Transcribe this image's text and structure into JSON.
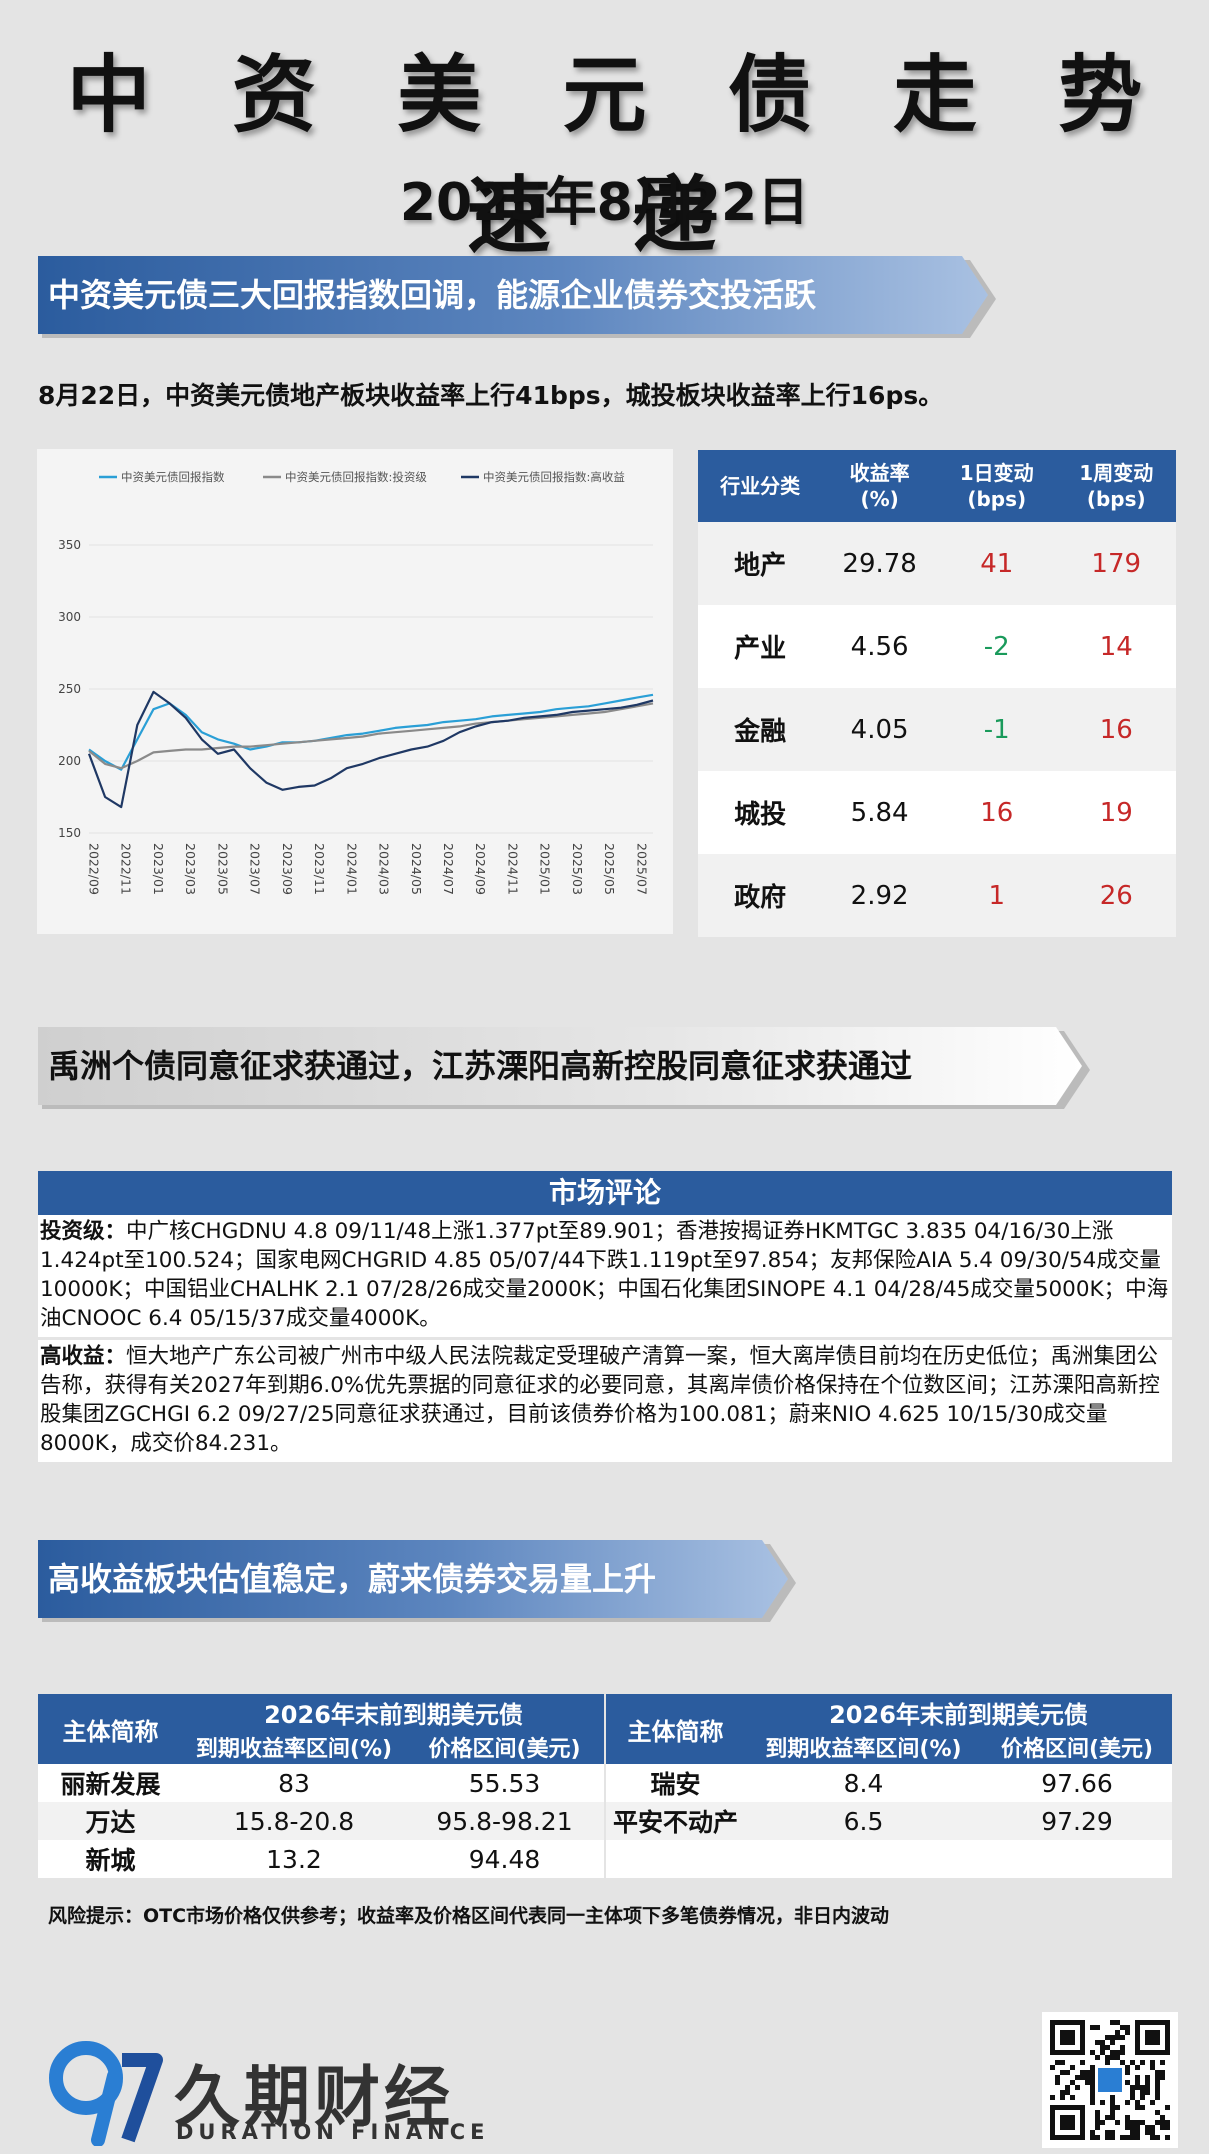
{
  "header": {
    "title": "中 资 美 元 债 走 势 速 递",
    "date": "2025年8月22日"
  },
  "section1": {
    "banner": "中资美元债三大回报指数回调，能源企业债券交投活跃",
    "summary": "8月22日，中资美元债地产板块收益率上行41bps，城投板块收益率上行16ps。"
  },
  "chart_data": {
    "type": "line",
    "title": "",
    "xlabel": "",
    "ylabel": "",
    "ylim": [
      150,
      350
    ],
    "yticks": [
      "150",
      "200",
      "250",
      "300",
      "350"
    ],
    "xticks": [
      "2022/09",
      "2022/11",
      "2023/01",
      "2023/03",
      "2023/05",
      "2023/07",
      "2023/09",
      "2023/11",
      "2024/01",
      "2024/03",
      "2024/05",
      "2024/07",
      "2024/09",
      "2024/11",
      "2025/01",
      "2025/03",
      "2025/05",
      "2025/07"
    ],
    "x": [
      "2022/09",
      "2022/10",
      "2022/11",
      "2022/12",
      "2023/01",
      "2023/02",
      "2023/03",
      "2023/04",
      "2023/05",
      "2023/06",
      "2023/07",
      "2023/08",
      "2023/09",
      "2023/10",
      "2023/11",
      "2023/12",
      "2024/01",
      "2024/02",
      "2024/03",
      "2024/04",
      "2024/05",
      "2024/06",
      "2024/07",
      "2024/08",
      "2024/09",
      "2024/10",
      "2024/11",
      "2024/12",
      "2025/01",
      "2025/02",
      "2025/03",
      "2025/04",
      "2025/05",
      "2025/06",
      "2025/07",
      "2025/08"
    ],
    "series": [
      {
        "name": "中资美元债回报指数",
        "color": "#2a9fd6",
        "values": [
          208,
          200,
          194,
          215,
          236,
          240,
          232,
          220,
          215,
          212,
          208,
          210,
          213,
          213,
          214,
          216,
          218,
          219,
          221,
          223,
          224,
          225,
          227,
          228,
          229,
          231,
          232,
          233,
          234,
          236,
          237,
          238,
          240,
          242,
          244,
          246
        ]
      },
      {
        "name": "中资美元债回报指数:投资级",
        "color": "#8a8a8a",
        "values": [
          207,
          198,
          195,
          200,
          206,
          207,
          208,
          208,
          209,
          210,
          210,
          211,
          212,
          213,
          214,
          215,
          216,
          217,
          219,
          220,
          221,
          222,
          223,
          224,
          226,
          227,
          228,
          229,
          230,
          231,
          232,
          233,
          234,
          236,
          238,
          240
        ]
      },
      {
        "name": "中资美元债回报指数:高收益",
        "color": "#1f3864",
        "values": [
          205,
          175,
          168,
          225,
          248,
          240,
          230,
          215,
          205,
          208,
          195,
          185,
          180,
          182,
          183,
          188,
          195,
          198,
          202,
          205,
          208,
          210,
          214,
          220,
          224,
          227,
          228,
          230,
          231,
          232,
          234,
          235,
          236,
          237,
          239,
          242
        ]
      }
    ],
    "legend_position": "top"
  },
  "sector_table": {
    "headers": [
      "行业分类",
      "收益率\n(%)",
      "1日变动\n(bps)",
      "1周变动\n(bps)"
    ],
    "rows": [
      {
        "name": "地产",
        "yield": "29.78",
        "d1": "41",
        "w1": "179",
        "d1_dir": "up",
        "w1_dir": "up"
      },
      {
        "name": "产业",
        "yield": "4.56",
        "d1": "-2",
        "w1": "14",
        "d1_dir": "down",
        "w1_dir": "up"
      },
      {
        "name": "金融",
        "yield": "4.05",
        "d1": "-1",
        "w1": "16",
        "d1_dir": "down",
        "w1_dir": "up"
      },
      {
        "name": "城投",
        "yield": "5.84",
        "d1": "16",
        "w1": "19",
        "d1_dir": "up",
        "w1_dir": "up"
      },
      {
        "name": "政府",
        "yield": "2.92",
        "d1": "1",
        "w1": "26",
        "d1_dir": "up",
        "w1_dir": "up"
      }
    ]
  },
  "section2": {
    "banner": "禹洲个债同意征求获通过，江苏溧阳高新控股同意征求获通过"
  },
  "comment": {
    "title": "市场评论",
    "ig_tag": "投资级：",
    "ig_text": "中广核CHGDNU 4.8 09/11/48上涨1.377pt至89.901；香港按揭证券HKMTGC 3.835 04/16/30上涨1.424pt至100.524；国家电网CHGRID 4.85 05/07/44下跌1.119pt至97.854；友邦保险AIA 5.4 09/30/54成交量10000K；中国铝业CHALHK 2.1 07/28/26成交量2000K；中国石化集团SINOPE 4.1 04/28/45成交量5000K；中海油CNOOC 6.4 05/15/37成交量4000K。",
    "hy_tag": "高收益：",
    "hy_text": "恒大地产广东公司被广州市中级人民法院裁定受理破产清算一案，恒大离岸债目前均在历史低位；禹洲集团公告称，获得有关2027年到期6.0%优先票据的同意征求的必要同意，其离岸债价格保持在个位数区间；江苏溧阳高新控股集团ZGCHGI 6.2 09/27/25同意征求获通过，目前该债券价格为100.081；蔚来NIO 4.625 10/15/30成交量8000K，成交价84.231。"
  },
  "section3": {
    "banner": "高收益板块估值稳定，蔚来债券交易量上升"
  },
  "bond_table": {
    "entity_header": "主体简称",
    "group_header": "2026年末前到期美元债",
    "yield_header": "到期收益率区间(%)",
    "price_header": "价格区间(美元)",
    "left_rows": [
      {
        "name": "丽新发展",
        "yield": "83",
        "price": "55.53"
      },
      {
        "name": "万达",
        "yield": "15.8-20.8",
        "price": "95.8-98.21"
      },
      {
        "name": "新城",
        "yield": "13.2",
        "price": "94.48"
      }
    ],
    "right_rows": [
      {
        "name": "瑞安",
        "yield": "8.4",
        "price": "97.66"
      },
      {
        "name": "平安不动产",
        "yield": "6.5",
        "price": "97.29"
      },
      {
        "name": "",
        "yield": "",
        "price": ""
      }
    ]
  },
  "risk_note": "风险提示：OTC市场价格仅供参考；收益率及价格区间代表同一主体项下多笔债券情况，非日内波动",
  "footer": {
    "brand_cn": "久期财经",
    "brand_en": "DURATION FINANCE"
  }
}
